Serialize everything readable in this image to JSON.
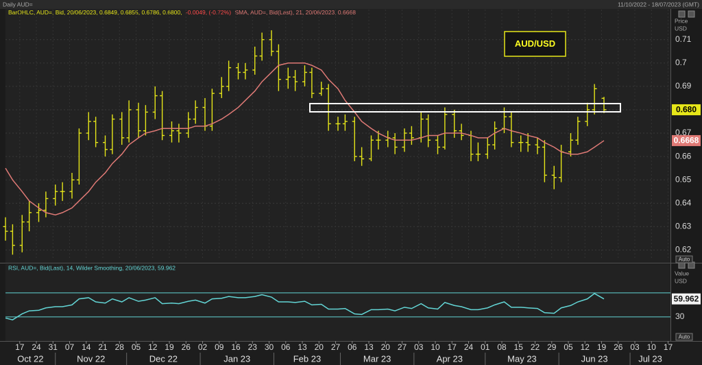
{
  "header": {
    "title": "Daily AUD=",
    "range": "11/10/2022 - 18/07/2023 (GMT)"
  },
  "chart_data": [
    {
      "type": "ohlc",
      "legend": {
        "ohlc": "BarOHLC, AUD=, Bid, 20/06/2023, 0.6849, 0.6855, 0.6786, 0.6800,",
        "change": "-0.0049, (-0.72%)",
        "sma": "SMA, AUD=, Bid(Last), 21, 20/06/2023, 0.6668"
      },
      "annotation": "AUD/USD",
      "axis_title": [
        "Price",
        "USD"
      ],
      "auto_button": "Auto",
      "xlim": [
        "2022-10-11",
        "2023-07-18"
      ],
      "ylim": [
        0.616,
        0.7205
      ],
      "yticks": [
        0.62,
        0.63,
        0.64,
        0.65,
        0.66,
        0.67,
        0.68,
        0.69,
        0.7,
        0.71
      ],
      "grid": true,
      "x": [
        "2022-10-11",
        "2022-10-14",
        "2022-10-18",
        "2022-10-21",
        "2022-10-25",
        "2022-10-28",
        "2022-11-01",
        "2022-11-04",
        "2022-11-08",
        "2022-11-11",
        "2022-11-15",
        "2022-11-18",
        "2022-11-22",
        "2022-11-25",
        "2022-11-29",
        "2022-12-02",
        "2022-12-06",
        "2022-12-09",
        "2022-12-13",
        "2022-12-16",
        "2022-12-20",
        "2022-12-23",
        "2022-12-27",
        "2022-12-30",
        "2023-01-03",
        "2023-01-06",
        "2023-01-10",
        "2023-01-13",
        "2023-01-17",
        "2023-01-20",
        "2023-01-24",
        "2023-01-27",
        "2023-01-31",
        "2023-02-03",
        "2023-02-07",
        "2023-02-10",
        "2023-02-14",
        "2023-02-17",
        "2023-02-21",
        "2023-02-24",
        "2023-02-28",
        "2023-03-03",
        "2023-03-07",
        "2023-03-10",
        "2023-03-14",
        "2023-03-17",
        "2023-03-21",
        "2023-03-24",
        "2023-03-28",
        "2023-03-31",
        "2023-04-04",
        "2023-04-07",
        "2023-04-11",
        "2023-04-14",
        "2023-04-18",
        "2023-04-21",
        "2023-04-25",
        "2023-04-28",
        "2023-05-02",
        "2023-05-05",
        "2023-05-09",
        "2023-05-12",
        "2023-05-16",
        "2023-05-19",
        "2023-05-23",
        "2023-05-26",
        "2023-05-30",
        "2023-06-02",
        "2023-06-06",
        "2023-06-09",
        "2023-06-13",
        "2023-06-16",
        "2023-06-20"
      ],
      "series": [
        {
          "type": "ohlc",
          "color": "#e6e619",
          "open": [
            0.63,
            0.628,
            0.622,
            0.632,
            0.636,
            0.637,
            0.642,
            0.645,
            0.645,
            0.65,
            0.67,
            0.675,
            0.666,
            0.663,
            0.676,
            0.668,
            0.68,
            0.671,
            0.679,
            0.686,
            0.669,
            0.671,
            0.67,
            0.676,
            0.681,
            0.673,
            0.687,
            0.69,
            0.698,
            0.696,
            0.697,
            0.703,
            0.71,
            0.705,
            0.693,
            0.694,
            0.692,
            0.696,
            0.687,
            0.689,
            0.674,
            0.674,
            0.675,
            0.66,
            0.659,
            0.667,
            0.667,
            0.668,
            0.664,
            0.67,
            0.668,
            0.676,
            0.667,
            0.664,
            0.678,
            0.671,
            0.669,
            0.661,
            0.661,
            0.665,
            0.672,
            0.677,
            0.666,
            0.666,
            0.665,
            0.664,
            0.652,
            0.651,
            0.662,
            0.667,
            0.675,
            0.68,
            0.6849
          ],
          "high": [
            0.634,
            0.631,
            0.635,
            0.641,
            0.64,
            0.645,
            0.648,
            0.649,
            0.653,
            0.672,
            0.679,
            0.677,
            0.669,
            0.678,
            0.679,
            0.684,
            0.683,
            0.682,
            0.69,
            0.688,
            0.675,
            0.674,
            0.679,
            0.684,
            0.685,
            0.689,
            0.694,
            0.701,
            0.7,
            0.7,
            0.707,
            0.713,
            0.714,
            0.708,
            0.698,
            0.697,
            0.699,
            0.698,
            0.692,
            0.691,
            0.677,
            0.678,
            0.677,
            0.664,
            0.669,
            0.671,
            0.671,
            0.67,
            0.672,
            0.673,
            0.679,
            0.678,
            0.669,
            0.681,
            0.68,
            0.674,
            0.671,
            0.666,
            0.668,
            0.675,
            0.681,
            0.679,
            0.669,
            0.67,
            0.668,
            0.667,
            0.656,
            0.665,
            0.67,
            0.677,
            0.683,
            0.691,
            0.6855
          ],
          "low": [
            0.624,
            0.618,
            0.619,
            0.628,
            0.632,
            0.634,
            0.639,
            0.641,
            0.642,
            0.648,
            0.667,
            0.664,
            0.66,
            0.661,
            0.665,
            0.666,
            0.668,
            0.669,
            0.676,
            0.667,
            0.666,
            0.666,
            0.668,
            0.674,
            0.671,
            0.671,
            0.685,
            0.688,
            0.693,
            0.693,
            0.695,
            0.701,
            0.703,
            0.688,
            0.689,
            0.688,
            0.69,
            0.685,
            0.686,
            0.671,
            0.671,
            0.671,
            0.658,
            0.656,
            0.658,
            0.663,
            0.664,
            0.661,
            0.662,
            0.665,
            0.666,
            0.664,
            0.661,
            0.663,
            0.668,
            0.667,
            0.658,
            0.658,
            0.659,
            0.663,
            0.67,
            0.664,
            0.662,
            0.662,
            0.661,
            0.649,
            0.646,
            0.649,
            0.66,
            0.665,
            0.673,
            0.678,
            0.6786
          ],
          "close": [
            0.628,
            0.622,
            0.632,
            0.636,
            0.637,
            0.642,
            0.645,
            0.645,
            0.65,
            0.67,
            0.675,
            0.666,
            0.663,
            0.676,
            0.668,
            0.68,
            0.671,
            0.679,
            0.686,
            0.669,
            0.671,
            0.67,
            0.676,
            0.681,
            0.673,
            0.687,
            0.69,
            0.698,
            0.696,
            0.697,
            0.703,
            0.71,
            0.705,
            0.693,
            0.694,
            0.692,
            0.696,
            0.687,
            0.689,
            0.674,
            0.674,
            0.675,
            0.66,
            0.659,
            0.667,
            0.667,
            0.668,
            0.664,
            0.67,
            0.668,
            0.676,
            0.667,
            0.664,
            0.678,
            0.671,
            0.669,
            0.661,
            0.661,
            0.665,
            0.672,
            0.677,
            0.666,
            0.666,
            0.665,
            0.664,
            0.652,
            0.651,
            0.662,
            0.667,
            0.675,
            0.68,
            0.689,
            0.68
          ],
          "last_label": {
            "value": 0.68,
            "label": "0.680"
          }
        },
        {
          "type": "line",
          "color": "#e07a76",
          "values": [
            0.655,
            0.65,
            0.645,
            0.641,
            0.638,
            0.636,
            0.635,
            0.636,
            0.638,
            0.641,
            0.645,
            0.649,
            0.653,
            0.657,
            0.661,
            0.665,
            0.668,
            0.67,
            0.671,
            0.672,
            0.672,
            0.672,
            0.672,
            0.673,
            0.673,
            0.674,
            0.676,
            0.678,
            0.681,
            0.684,
            0.688,
            0.692,
            0.696,
            0.699,
            0.7,
            0.7,
            0.7,
            0.699,
            0.697,
            0.693,
            0.689,
            0.684,
            0.679,
            0.675,
            0.672,
            0.67,
            0.668,
            0.667,
            0.667,
            0.667,
            0.668,
            0.669,
            0.669,
            0.67,
            0.67,
            0.67,
            0.669,
            0.668,
            0.668,
            0.67,
            0.672,
            0.671,
            0.67,
            0.669,
            0.668,
            0.666,
            0.664,
            0.662,
            0.661,
            0.661,
            0.662,
            0.664,
            0.6668
          ],
          "last_label": 0.6668
        }
      ]
    },
    {
      "type": "line",
      "legend": "RSI, AUD=, Bid(Last), 14, Wilder Smoothing, 20/06/2023, 59.962",
      "axis_title": [
        "Value",
        "USD"
      ],
      "auto_button": "Auto",
      "xlim": [
        "2022-10-11",
        "2023-07-18"
      ],
      "ylim": [
        -8,
        110
      ],
      "yticks": [
        30
      ],
      "levels": [
        30,
        70
      ],
      "xticks": [
        {
          "value": "2022-10-17",
          "label": "17"
        },
        {
          "value": "2022-10-24",
          "label": "24"
        },
        {
          "value": "2022-10-31",
          "label": "31"
        },
        {
          "value": "2022-11-07",
          "label": "07"
        },
        {
          "value": "2022-11-14",
          "label": "14"
        },
        {
          "value": "2022-11-21",
          "label": "21"
        },
        {
          "value": "2022-11-28",
          "label": "28"
        },
        {
          "value": "2022-12-05",
          "label": "05"
        },
        {
          "value": "2022-12-12",
          "label": "12"
        },
        {
          "value": "2022-12-19",
          "label": "19"
        },
        {
          "value": "2022-12-26",
          "label": "26"
        },
        {
          "value": "2023-01-02",
          "label": "02"
        },
        {
          "value": "2023-01-09",
          "label": "09"
        },
        {
          "value": "2023-01-16",
          "label": "16"
        },
        {
          "value": "2023-01-23",
          "label": "23"
        },
        {
          "value": "2023-01-30",
          "label": "30"
        },
        {
          "value": "2023-02-06",
          "label": "06"
        },
        {
          "value": "2023-02-13",
          "label": "13"
        },
        {
          "value": "2023-02-20",
          "label": "20"
        },
        {
          "value": "2023-02-27",
          "label": "27"
        },
        {
          "value": "2023-03-06",
          "label": "06"
        },
        {
          "value": "2023-03-13",
          "label": "13"
        },
        {
          "value": "2023-03-20",
          "label": "20"
        },
        {
          "value": "2023-03-27",
          "label": "27"
        },
        {
          "value": "2023-04-03",
          "label": "03"
        },
        {
          "value": "2023-04-10",
          "label": "10"
        },
        {
          "value": "2023-04-17",
          "label": "17"
        },
        {
          "value": "2023-04-24",
          "label": "24"
        },
        {
          "value": "2023-05-01",
          "label": "01"
        },
        {
          "value": "2023-05-08",
          "label": "08"
        },
        {
          "value": "2023-05-15",
          "label": "15"
        },
        {
          "value": "2023-05-22",
          "label": "22"
        },
        {
          "value": "2023-05-29",
          "label": "29"
        },
        {
          "value": "2023-06-05",
          "label": "05"
        },
        {
          "value": "2023-06-12",
          "label": "12"
        },
        {
          "value": "2023-06-19",
          "label": "19"
        },
        {
          "value": "2023-06-26",
          "label": "26"
        },
        {
          "value": "2023-07-03",
          "label": "03"
        },
        {
          "value": "2023-07-10",
          "label": "10"
        },
        {
          "value": "2023-07-17",
          "label": "17"
        }
      ],
      "months": [
        {
          "value": "2022-10",
          "label": "Oct 22"
        },
        {
          "value": "2022-11",
          "label": "Nov 22"
        },
        {
          "value": "2022-12",
          "label": "Dec 22"
        },
        {
          "value": "2023-01",
          "label": "Jan 23"
        },
        {
          "value": "2023-02",
          "label": "Feb 23"
        },
        {
          "value": "2023-03",
          "label": "Mar 23"
        },
        {
          "value": "2023-04",
          "label": "Apr 23"
        },
        {
          "value": "2023-05",
          "label": "May 23"
        },
        {
          "value": "2023-06",
          "label": "Jun 23"
        },
        {
          "value": "2023-07",
          "label": "Jul 23"
        }
      ],
      "x": [
        "2022-10-11",
        "2022-10-14",
        "2022-10-18",
        "2022-10-21",
        "2022-10-25",
        "2022-10-28",
        "2022-11-01",
        "2022-11-04",
        "2022-11-08",
        "2022-11-11",
        "2022-11-15",
        "2022-11-18",
        "2022-11-22",
        "2022-11-25",
        "2022-11-29",
        "2022-12-02",
        "2022-12-06",
        "2022-12-09",
        "2022-12-13",
        "2022-12-16",
        "2022-12-20",
        "2022-12-23",
        "2022-12-27",
        "2022-12-30",
        "2023-01-03",
        "2023-01-06",
        "2023-01-10",
        "2023-01-13",
        "2023-01-17",
        "2023-01-20",
        "2023-01-24",
        "2023-01-27",
        "2023-01-31",
        "2023-02-03",
        "2023-02-07",
        "2023-02-10",
        "2023-02-14",
        "2023-02-17",
        "2023-02-21",
        "2023-02-24",
        "2023-02-28",
        "2023-03-03",
        "2023-03-07",
        "2023-03-10",
        "2023-03-14",
        "2023-03-17",
        "2023-03-21",
        "2023-03-24",
        "2023-03-28",
        "2023-03-31",
        "2023-04-04",
        "2023-04-07",
        "2023-04-11",
        "2023-04-14",
        "2023-04-18",
        "2023-04-21",
        "2023-04-25",
        "2023-04-28",
        "2023-05-02",
        "2023-05-05",
        "2023-05-09",
        "2023-05-12",
        "2023-05-16",
        "2023-05-19",
        "2023-05-23",
        "2023-05-26",
        "2023-05-30",
        "2023-06-02",
        "2023-06-06",
        "2023-06-09",
        "2023-06-13",
        "2023-06-16",
        "2023-06-20"
      ],
      "series": [
        {
          "type": "line",
          "color": "#63d6d6",
          "values": [
            28,
            25,
            35,
            40,
            41,
            45,
            47,
            47,
            50,
            60,
            62,
            55,
            53,
            60,
            55,
            62,
            56,
            58,
            62,
            52,
            53,
            52,
            56,
            58,
            53,
            60,
            61,
            64,
            62,
            62,
            64,
            67,
            63,
            55,
            55,
            54,
            56,
            50,
            51,
            43,
            43,
            44,
            35,
            34,
            42,
            42,
            43,
            40,
            46,
            44,
            52,
            45,
            43,
            54,
            49,
            47,
            42,
            42,
            45,
            50,
            55,
            46,
            46,
            45,
            44,
            37,
            36,
            45,
            49,
            55,
            60,
            69,
            59.962
          ],
          "last_label": 59.962
        }
      ]
    }
  ]
}
